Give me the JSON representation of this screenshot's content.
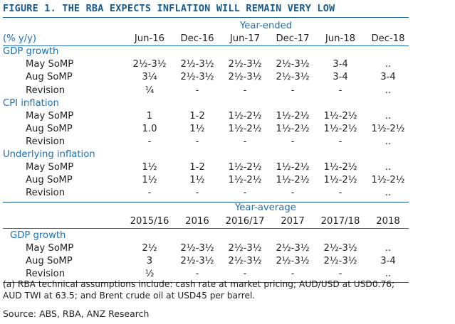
{
  "title": "FIGURE 1. THE RBA EXPECTS INFLATION WILL REMAIN VERY LOW",
  "top": {
    "group_header": "Year-ended",
    "unit": "(% y/y)",
    "columns": [
      "Jun-16",
      "Dec-16",
      "Jun-17",
      "Dec-17",
      "Jun-18",
      "Dec-18"
    ],
    "sections": [
      {
        "name": "GDP growth",
        "rows": [
          {
            "label": "May SoMP",
            "values": [
              "2½-3½",
              "2½-3½",
              "2½-3½",
              "2½-3½",
              "3-4",
              ".."
            ]
          },
          {
            "label": "Aug SoMP",
            "values": [
              "3¼",
              "2½-3½",
              "2½-3½",
              "2½-3½",
              "3-4",
              "3-4"
            ]
          },
          {
            "label": "Revision",
            "values": [
              "¼",
              "-",
              "-",
              "-",
              "-",
              ".."
            ]
          }
        ]
      },
      {
        "name": "CPI inflation",
        "rows": [
          {
            "label": "May SoMP",
            "values": [
              "1",
              "1-2",
              "1½-2½",
              "1½-2½",
              "1½-2½",
              ".."
            ]
          },
          {
            "label": "Aug SoMP",
            "values": [
              "1.0",
              "1½",
              "1½-2½",
              "1½-2½",
              "1½-2½",
              "1½-2½"
            ]
          },
          {
            "label": "Revision",
            "values": [
              "-",
              "-",
              "-",
              "-",
              "-",
              ".."
            ]
          }
        ]
      },
      {
        "name": "Underlying inflation",
        "rows": [
          {
            "label": "May SoMP",
            "values": [
              "1½",
              "1-2",
              "1½-2½",
              "1½-2½",
              "1½-2½",
              ".."
            ]
          },
          {
            "label": "Aug SoMP",
            "values": [
              "1½",
              "1½",
              "1½-2½",
              "1½-2½",
              "1½-2½",
              "1½-2½"
            ]
          },
          {
            "label": "Revision",
            "values": [
              "-",
              "-",
              "-",
              "-",
              "-",
              ".."
            ]
          }
        ]
      }
    ]
  },
  "bottom": {
    "group_header": "Year-average",
    "columns": [
      "2015/16",
      "2016",
      "2016/17",
      "2017",
      "2017/18",
      "2018"
    ],
    "sections": [
      {
        "name": "GDP growth",
        "rows": [
          {
            "label": "May SoMP",
            "values": [
              "2½",
              "2½-3½",
              "2½-3½",
              "2½-3½",
              "2½-3½",
              ".."
            ]
          },
          {
            "label": "Aug SoMP",
            "values": [
              "3",
              "2½-3½",
              "2½-3½",
              "2½-3½",
              "2½-3½",
              "3-4"
            ]
          },
          {
            "label": "Revision",
            "values": [
              "½",
              "-",
              "-",
              "-",
              "-",
              ".."
            ]
          }
        ]
      }
    ]
  },
  "note_line1": "(a) RBA technical assumptions include: cash rate at market pricing; AUD/USD at USD0.76;",
  "note_line2": "AUD TWI at 63.5; and Brent crude oil at USD45 per barrel.",
  "source": "Source: ABS, RBA, ANZ Research"
}
